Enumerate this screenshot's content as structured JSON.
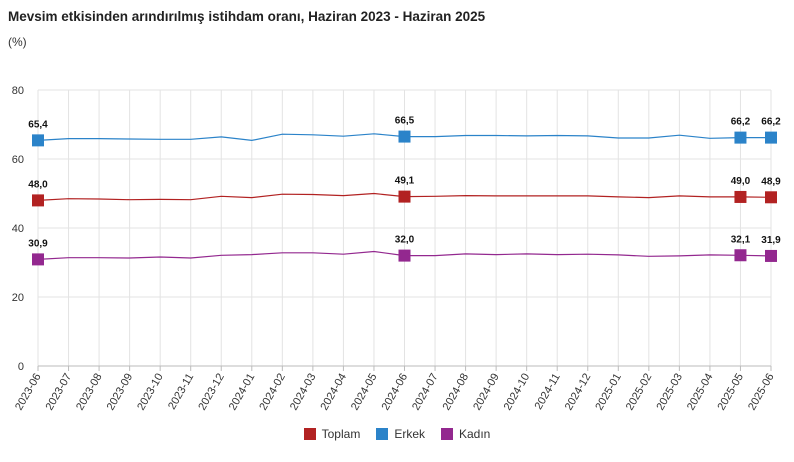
{
  "chart_data": {
    "type": "line",
    "title": "Mevsim etkisinden arındırılmış istihdam oranı, Haziran 2023 - Haziran 2025",
    "unit": "(%)",
    "xlabel": "",
    "ylabel": "",
    "ylim": [
      0,
      80
    ],
    "yticks": [
      "0",
      "20",
      "40",
      "60",
      "80"
    ],
    "grid": true,
    "legend_position": "bottom-center",
    "categories": [
      "2023-06",
      "2023-07",
      "2023-08",
      "2023-09",
      "2023-10",
      "2023-11",
      "2023-12",
      "2024-01",
      "2024-02",
      "2024-03",
      "2024-04",
      "2024-05",
      "2024-06",
      "2024-07",
      "2024-08",
      "2024-09",
      "2024-10",
      "2024-11",
      "2024-12",
      "2025-01",
      "2025-02",
      "2025-03",
      "2025-04",
      "2025-05",
      "2025-06"
    ],
    "series": [
      {
        "name": "Toplam",
        "color": "#b22222",
        "values": [
          48.0,
          48.5,
          48.4,
          48.2,
          48.3,
          48.2,
          49.2,
          48.8,
          49.8,
          49.7,
          49.4,
          50.0,
          49.1,
          49.2,
          49.4,
          49.3,
          49.3,
          49.3,
          49.3,
          49.0,
          48.8,
          49.3,
          49.0,
          49.0,
          48.9
        ],
        "labels": [
          {
            "index": 0,
            "text": "48,0"
          },
          {
            "index": 12,
            "text": "49,1"
          },
          {
            "index": 23,
            "text": "49,0"
          },
          {
            "index": 24,
            "text": "48,9"
          }
        ]
      },
      {
        "name": "Erkek",
        "color": "#2b83c9",
        "values": [
          65.4,
          65.9,
          65.9,
          65.8,
          65.7,
          65.7,
          66.4,
          65.4,
          67.2,
          67.0,
          66.6,
          67.3,
          66.5,
          66.5,
          66.8,
          66.8,
          66.7,
          66.8,
          66.7,
          66.1,
          66.1,
          66.9,
          66.0,
          66.2,
          66.2
        ],
        "labels": [
          {
            "index": 0,
            "text": "65,4"
          },
          {
            "index": 12,
            "text": "66,5"
          },
          {
            "index": 23,
            "text": "66,2"
          },
          {
            "index": 24,
            "text": "66,2"
          }
        ]
      },
      {
        "name": "Kadın",
        "color": "#93288f",
        "values": [
          30.9,
          31.4,
          31.4,
          31.3,
          31.6,
          31.3,
          32.1,
          32.3,
          32.8,
          32.8,
          32.4,
          33.2,
          32.0,
          32.0,
          32.5,
          32.3,
          32.5,
          32.3,
          32.4,
          32.2,
          31.8,
          31.9,
          32.2,
          32.1,
          31.9
        ],
        "labels": [
          {
            "index": 0,
            "text": "30,9"
          },
          {
            "index": 12,
            "text": "32,0"
          },
          {
            "index": 23,
            "text": "32,1"
          },
          {
            "index": 24,
            "text": "31,9"
          }
        ]
      }
    ]
  }
}
